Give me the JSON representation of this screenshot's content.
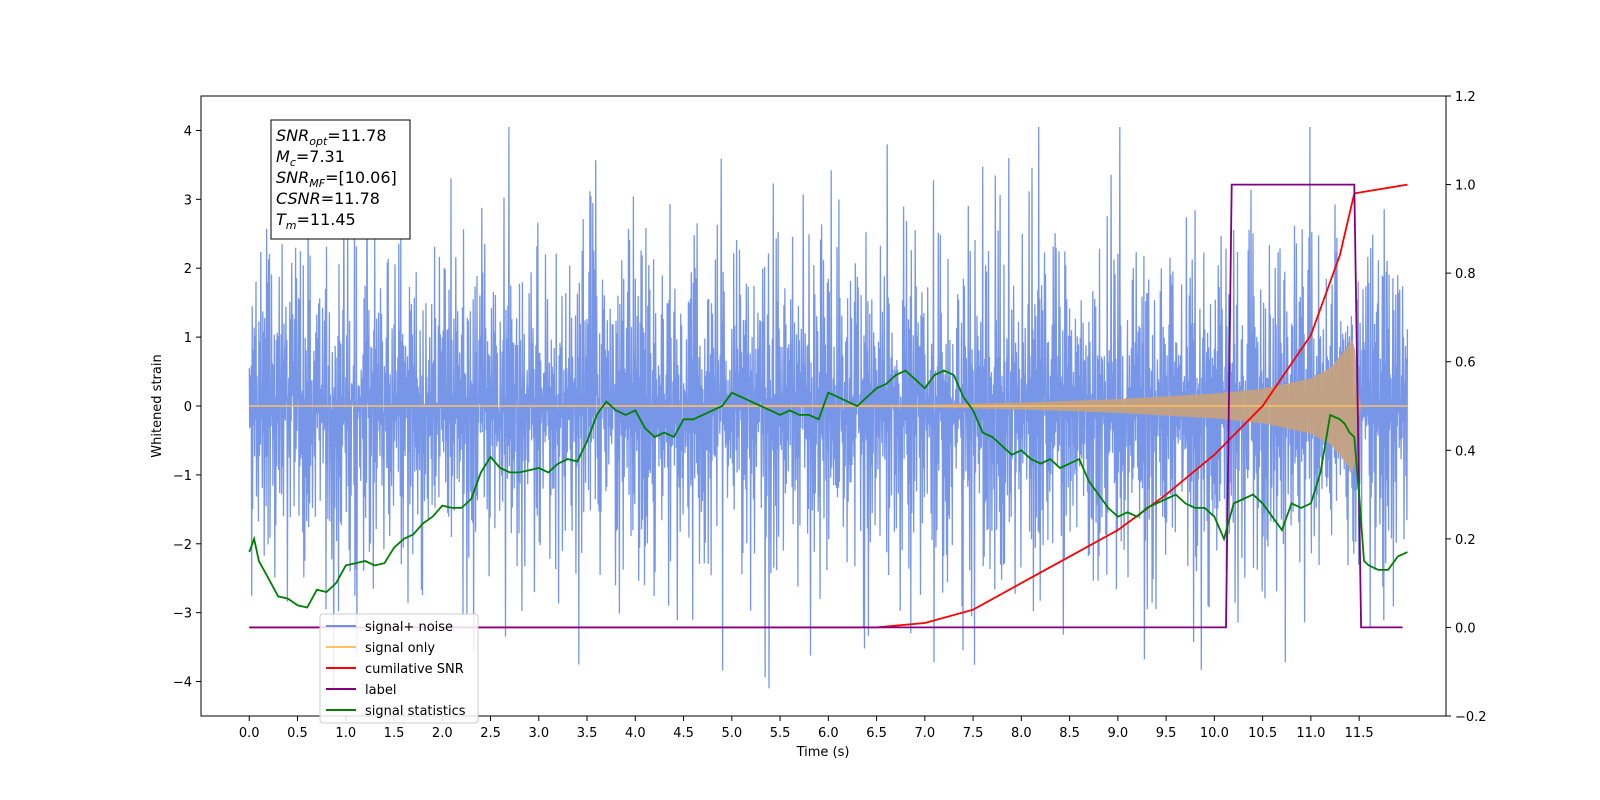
{
  "chart_data": {
    "type": "line",
    "xlabel": "Time (s)",
    "ylabel": "Whitened strain",
    "xlim": [
      -0.5,
      12.4
    ],
    "ylim_left": [
      -4.5,
      4.5
    ],
    "ylim_right": [
      -0.2,
      1.2
    ],
    "x_ticks": [
      "0.0",
      "0.5",
      "1.0",
      "1.5",
      "2.0",
      "2.5",
      "3.0",
      "3.5",
      "4.0",
      "4.5",
      "5.0",
      "5.5",
      "6.0",
      "6.5",
      "7.0",
      "7.5",
      "8.0",
      "8.5",
      "9.0",
      "9.5",
      "10.0",
      "10.5",
      "11.0",
      "11.5"
    ],
    "y_ticks_left": [
      "4",
      "3",
      "2",
      "1",
      "0",
      "−1",
      "−2",
      "−3",
      "−4"
    ],
    "y_ticks_right": [
      "1.2",
      "1.0",
      "0.8",
      "0.6",
      "0.4",
      "0.2",
      "0.0",
      "−0.2"
    ],
    "annotation": {
      "lines": [
        {
          "base": "SNR",
          "sub": "opt",
          "rest": "=11.78"
        },
        {
          "base": "M",
          "sub": "c",
          "rest": "=7.31"
        },
        {
          "base": "SNR",
          "sub": "MF",
          "rest": "=[10.06]"
        },
        {
          "base": "CSNR",
          "sub": "",
          "rest": "=11.78"
        },
        {
          "base": "T",
          "sub": "m",
          "rest": "=11.45"
        }
      ]
    },
    "legend": {
      "placement": "lower-left",
      "entries": [
        {
          "label": "signal+ noise",
          "color": "#7090e6"
        },
        {
          "label": "signal only",
          "color": "#ffc064"
        },
        {
          "label": "cumilative SNR",
          "color": "#ff0000"
        },
        {
          "label": "label",
          "color": "#800080"
        },
        {
          "label": "signal statistics",
          "color": "#008000"
        }
      ]
    },
    "series": [
      {
        "name": "signal+ noise",
        "axis": "left",
        "color": "#7090e6",
        "description_values": {
          "x_range": [
            0.0,
            12.0
          ],
          "typical_amplitude": 2.2,
          "extreme_max": 4.05,
          "extreme_min": -4.1
        }
      },
      {
        "name": "signal only",
        "axis": "left",
        "color": "#ffc064",
        "envelope": {
          "x": [
            0.0,
            7.0,
            8.0,
            9.0,
            10.0,
            10.5,
            11.0,
            11.2,
            11.35,
            11.45,
            11.5,
            12.0
          ],
          "amp": [
            0.0,
            0.02,
            0.05,
            0.1,
            0.18,
            0.25,
            0.4,
            0.55,
            0.8,
            1.0,
            0.0,
            0.0
          ]
        }
      },
      {
        "name": "cumilative SNR",
        "axis": "right",
        "color": "#ff0000",
        "x": [
          0.0,
          6.5,
          7.0,
          7.5,
          8.0,
          8.5,
          9.0,
          9.5,
          10.0,
          10.5,
          11.0,
          11.3,
          11.45,
          12.0
        ],
        "y": [
          0.0,
          0.0,
          0.01,
          0.04,
          0.1,
          0.16,
          0.22,
          0.3,
          0.39,
          0.5,
          0.66,
          0.84,
          0.98,
          1.0
        ]
      },
      {
        "name": "label",
        "axis": "right",
        "color": "#800080",
        "x": [
          0.0,
          10.12,
          10.18,
          11.45,
          11.52,
          11.95
        ],
        "y": [
          0.0,
          0.0,
          1.0,
          1.0,
          0.0,
          0.0
        ]
      },
      {
        "name": "signal statistics",
        "axis": "right",
        "color": "#008000",
        "x": [
          0.0,
          0.05,
          0.1,
          0.2,
          0.3,
          0.4,
          0.5,
          0.6,
          0.7,
          0.8,
          0.9,
          1.0,
          1.1,
          1.2,
          1.3,
          1.4,
          1.5,
          1.6,
          1.7,
          1.8,
          1.9,
          2.0,
          2.1,
          2.2,
          2.3,
          2.4,
          2.5,
          2.6,
          2.7,
          2.8,
          2.9,
          3.0,
          3.1,
          3.2,
          3.3,
          3.4,
          3.5,
          3.6,
          3.7,
          3.8,
          3.9,
          4.0,
          4.1,
          4.2,
          4.3,
          4.4,
          4.5,
          4.6,
          4.7,
          4.8,
          4.9,
          5.0,
          5.1,
          5.2,
          5.3,
          5.4,
          5.5,
          5.6,
          5.7,
          5.8,
          5.9,
          6.0,
          6.1,
          6.2,
          6.3,
          6.4,
          6.5,
          6.6,
          6.7,
          6.8,
          6.9,
          7.0,
          7.1,
          7.2,
          7.3,
          7.4,
          7.5,
          7.6,
          7.7,
          7.8,
          7.9,
          8.0,
          8.1,
          8.2,
          8.3,
          8.4,
          8.5,
          8.6,
          8.7,
          8.8,
          8.9,
          9.0,
          9.1,
          9.2,
          9.3,
          9.4,
          9.5,
          9.6,
          9.7,
          9.8,
          9.9,
          10.0,
          10.1,
          10.2,
          10.3,
          10.4,
          10.5,
          10.6,
          10.7,
          10.8,
          10.9,
          11.0,
          11.1,
          11.2,
          11.3,
          11.35,
          11.4,
          11.45,
          11.5,
          11.55,
          11.6,
          11.7,
          11.8,
          11.9,
          12.0
        ],
        "y": [
          0.17,
          0.2,
          0.15,
          0.11,
          0.07,
          0.065,
          0.05,
          0.045,
          0.085,
          0.08,
          0.1,
          0.14,
          0.145,
          0.15,
          0.14,
          0.145,
          0.18,
          0.2,
          0.21,
          0.235,
          0.25,
          0.275,
          0.27,
          0.27,
          0.29,
          0.35,
          0.385,
          0.36,
          0.35,
          0.35,
          0.355,
          0.36,
          0.35,
          0.37,
          0.38,
          0.375,
          0.42,
          0.48,
          0.51,
          0.49,
          0.48,
          0.49,
          0.45,
          0.43,
          0.44,
          0.43,
          0.47,
          0.47,
          0.48,
          0.49,
          0.5,
          0.53,
          0.52,
          0.51,
          0.5,
          0.49,
          0.48,
          0.49,
          0.48,
          0.48,
          0.47,
          0.53,
          0.52,
          0.51,
          0.5,
          0.52,
          0.54,
          0.55,
          0.57,
          0.58,
          0.56,
          0.54,
          0.57,
          0.58,
          0.57,
          0.52,
          0.49,
          0.44,
          0.43,
          0.41,
          0.39,
          0.4,
          0.38,
          0.37,
          0.38,
          0.36,
          0.37,
          0.38,
          0.33,
          0.3,
          0.27,
          0.25,
          0.26,
          0.25,
          0.27,
          0.28,
          0.29,
          0.3,
          0.28,
          0.27,
          0.27,
          0.25,
          0.2,
          0.28,
          0.29,
          0.3,
          0.28,
          0.25,
          0.22,
          0.28,
          0.27,
          0.28,
          0.35,
          0.48,
          0.47,
          0.46,
          0.44,
          0.43,
          0.3,
          0.15,
          0.14,
          0.13,
          0.13,
          0.16,
          0.17
        ]
      }
    ]
  }
}
